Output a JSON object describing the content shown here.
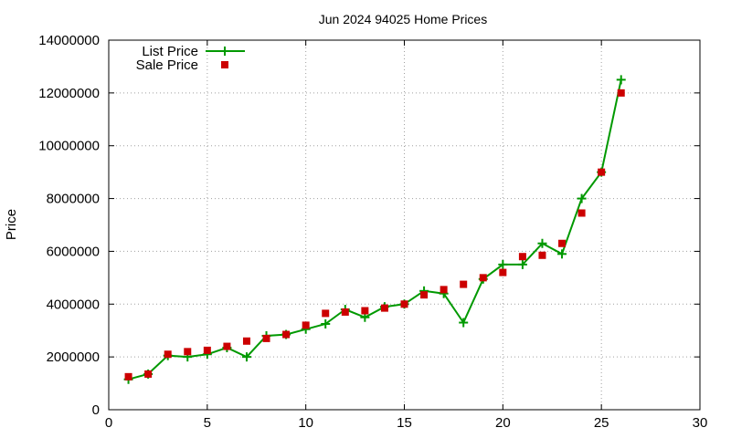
{
  "chart_data": {
    "type": "line",
    "title": "Jun 2024 94025 Home Prices",
    "xlabel": "",
    "ylabel": "Price",
    "xlim": [
      0,
      30
    ],
    "ylim": [
      0,
      14000000
    ],
    "xticks": [
      0,
      5,
      10,
      15,
      20,
      25,
      30
    ],
    "yticks": [
      0,
      2000000,
      4000000,
      6000000,
      8000000,
      10000000,
      12000000,
      14000000
    ],
    "xtick_labels": [
      "0",
      "5",
      "10",
      "15",
      "20",
      "25",
      "30"
    ],
    "ytick_labels": [
      "0",
      "2000000",
      "4000000",
      "6000000",
      "8000000",
      "10000000",
      "12000000",
      "14000000"
    ],
    "grid": true,
    "legend_position": "top-left",
    "x": [
      1,
      2,
      3,
      4,
      5,
      6,
      7,
      8,
      9,
      10,
      11,
      12,
      13,
      14,
      15,
      16,
      17,
      18,
      19,
      20,
      21,
      22,
      23,
      24,
      25,
      26
    ],
    "series": [
      {
        "name": "List Price",
        "style": "line-plus",
        "color": "#009900",
        "values": [
          1150000,
          1350000,
          2050000,
          2000000,
          2100000,
          2350000,
          2000000,
          2800000,
          2850000,
          3050000,
          3250000,
          3800000,
          3500000,
          3900000,
          4000000,
          4500000,
          4400000,
          3300000,
          4950000,
          5500000,
          5500000,
          6300000,
          5900000,
          8000000,
          9000000,
          12500000
        ]
      },
      {
        "name": "Sale Price",
        "style": "square-marker",
        "color": "#cc0000",
        "values": [
          1250000,
          1350000,
          2100000,
          2200000,
          2250000,
          2400000,
          2600000,
          2700000,
          2850000,
          3200000,
          3650000,
          3700000,
          3750000,
          3850000,
          4000000,
          4350000,
          4550000,
          4750000,
          5000000,
          5200000,
          5800000,
          5850000,
          6300000,
          7450000,
          9000000,
          12000000
        ]
      }
    ]
  }
}
